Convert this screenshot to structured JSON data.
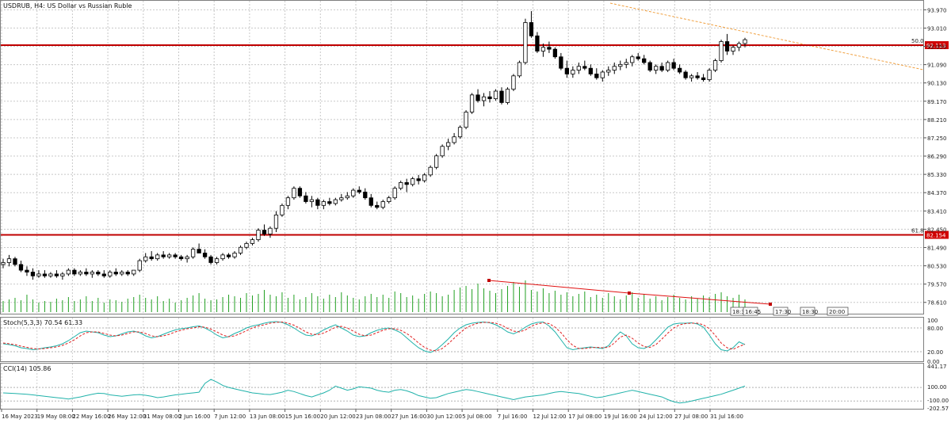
{
  "chart_data": {
    "type": "candlestick",
    "title": "USDRUB, H4:  US Dollar vs Russian Ruble",
    "price_axis": {
      "ticks": [
        "93.970",
        "93.010",
        "92.050",
        "91.090",
        "90.130",
        "89.170",
        "88.210",
        "87.250",
        "86.290",
        "85.330",
        "84.370",
        "83.410",
        "82.450",
        "81.490",
        "80.530",
        "79.570",
        "78.610"
      ],
      "range": [
        78.1,
        94.4
      ]
    },
    "time_axis": {
      "labels": [
        "16 May 2023",
        "19 May 08:00",
        "22 May 16:00",
        "26 May 12:00",
        "31 May 08:00",
        "2 Jun 16:00",
        "7 Jun 12:00",
        "13 Jun 08:00",
        "15 Jun 16:00",
        "20 Jun 12:00",
        "23 Jun 08:00",
        "27 Jun 16:00",
        "30 Jun 12:00",
        "5 Jul 08:00",
        "7 Jul 16:00",
        "12 Jul 12:00",
        "17 Jul 08:00",
        "19 Jul 16:00",
        "24 Jul 12:00",
        "27 Jul 08:00",
        "31 Jul 16:00"
      ]
    },
    "horizontal_levels": [
      {
        "label": "50.0",
        "value": 92.113,
        "tag": "92.113",
        "color": "#c00000"
      },
      {
        "label": "61.8",
        "value": 82.154,
        "tag": "82.154",
        "color": "#c00000"
      }
    ],
    "candles": [
      [
        80.6,
        80.9,
        80.4,
        80.7
      ],
      [
        80.7,
        81.1,
        80.5,
        80.9
      ],
      [
        80.9,
        81.0,
        80.5,
        80.6
      ],
      [
        80.6,
        80.8,
        80.2,
        80.3
      ],
      [
        80.3,
        80.5,
        80.0,
        80.2
      ],
      [
        80.2,
        80.4,
        79.8,
        80.0
      ],
      [
        80.0,
        80.3,
        79.9,
        80.1
      ],
      [
        80.1,
        80.3,
        79.9,
        80.0
      ],
      [
        80.0,
        80.2,
        79.9,
        80.1
      ],
      [
        80.1,
        80.3,
        79.9,
        80.0
      ],
      [
        80.0,
        80.2,
        79.8,
        80.1
      ],
      [
        80.1,
        80.4,
        80.0,
        80.3
      ],
      [
        80.3,
        80.4,
        80.0,
        80.1
      ],
      [
        80.1,
        80.3,
        80.0,
        80.2
      ],
      [
        80.2,
        80.4,
        80.0,
        80.1
      ],
      [
        80.1,
        80.3,
        79.9,
        80.2
      ],
      [
        80.2,
        80.3,
        80.0,
        80.1
      ],
      [
        80.1,
        80.3,
        79.9,
        80.0
      ],
      [
        80.0,
        80.3,
        79.9,
        80.2
      ],
      [
        80.2,
        80.4,
        80.0,
        80.1
      ],
      [
        80.1,
        80.3,
        80.0,
        80.2
      ],
      [
        80.2,
        80.3,
        80.0,
        80.1
      ],
      [
        80.1,
        80.3,
        80.0,
        80.3
      ],
      [
        80.3,
        80.9,
        80.2,
        80.8
      ],
      [
        80.8,
        81.2,
        80.7,
        81.0
      ],
      [
        81.0,
        81.3,
        80.8,
        80.9
      ],
      [
        80.9,
        81.2,
        80.8,
        81.1
      ],
      [
        81.1,
        81.3,
        80.9,
        81.0
      ],
      [
        81.0,
        81.2,
        80.9,
        81.1
      ],
      [
        81.1,
        81.2,
        80.9,
        81.0
      ],
      [
        81.0,
        81.1,
        80.8,
        80.9
      ],
      [
        80.9,
        81.1,
        80.7,
        81.0
      ],
      [
        81.0,
        81.5,
        80.9,
        81.4
      ],
      [
        81.4,
        81.7,
        81.3,
        81.2
      ],
      [
        81.2,
        81.4,
        80.9,
        81.0
      ],
      [
        81.0,
        81.1,
        80.6,
        80.7
      ],
      [
        80.7,
        81.0,
        80.6,
        80.9
      ],
      [
        80.9,
        81.2,
        80.8,
        81.1
      ],
      [
        81.1,
        81.2,
        80.9,
        81.0
      ],
      [
        81.0,
        81.3,
        80.9,
        81.2
      ],
      [
        81.2,
        81.6,
        81.1,
        81.5
      ],
      [
        81.5,
        81.8,
        81.4,
        81.7
      ],
      [
        81.7,
        82.0,
        81.6,
        81.9
      ],
      [
        81.9,
        82.5,
        81.8,
        82.4
      ],
      [
        82.4,
        82.7,
        82.1,
        82.2
      ],
      [
        82.2,
        82.6,
        82.0,
        82.5
      ],
      [
        82.5,
        83.4,
        82.3,
        83.2
      ],
      [
        83.2,
        83.8,
        83.1,
        83.7
      ],
      [
        83.7,
        84.2,
        83.5,
        84.1
      ],
      [
        84.1,
        84.7,
        84.0,
        84.6
      ],
      [
        84.6,
        84.7,
        84.1,
        84.2
      ],
      [
        84.2,
        84.4,
        83.8,
        83.9
      ],
      [
        83.9,
        84.2,
        83.6,
        84.0
      ],
      [
        84.0,
        84.1,
        83.5,
        83.7
      ],
      [
        83.7,
        84.0,
        83.5,
        83.9
      ],
      [
        83.9,
        84.1,
        83.7,
        83.8
      ],
      [
        83.8,
        84.1,
        83.7,
        84.0
      ],
      [
        84.0,
        84.3,
        83.9,
        84.1
      ],
      [
        84.1,
        84.4,
        84.0,
        84.2
      ],
      [
        84.2,
        84.6,
        84.1,
        84.5
      ],
      [
        84.5,
        84.7,
        84.3,
        84.4
      ],
      [
        84.4,
        84.6,
        84.0,
        84.1
      ],
      [
        84.1,
        84.3,
        83.6,
        83.7
      ],
      [
        83.7,
        83.9,
        83.5,
        83.6
      ],
      [
        83.6,
        84.0,
        83.5,
        83.9
      ],
      [
        83.9,
        84.2,
        83.8,
        84.1
      ],
      [
        84.1,
        84.7,
        84.0,
        84.6
      ],
      [
        84.6,
        85.0,
        84.5,
        84.9
      ],
      [
        84.9,
        85.1,
        84.4,
        84.8
      ],
      [
        84.8,
        85.2,
        84.7,
        85.1
      ],
      [
        85.1,
        85.3,
        84.8,
        85.0
      ],
      [
        85.0,
        85.4,
        84.9,
        85.3
      ],
      [
        85.3,
        85.8,
        85.2,
        85.7
      ],
      [
        85.7,
        86.4,
        85.6,
        86.3
      ],
      [
        86.3,
        86.9,
        86.2,
        86.8
      ],
      [
        86.8,
        87.2,
        86.6,
        87.0
      ],
      [
        87.0,
        87.5,
        86.9,
        87.3
      ],
      [
        87.3,
        87.9,
        87.2,
        87.8
      ],
      [
        87.8,
        88.7,
        87.7,
        88.6
      ],
      [
        88.6,
        89.6,
        88.5,
        89.5
      ],
      [
        89.5,
        89.8,
        89.1,
        89.2
      ],
      [
        89.2,
        89.6,
        88.9,
        89.4
      ],
      [
        89.4,
        89.7,
        89.1,
        89.3
      ],
      [
        89.3,
        89.8,
        89.2,
        89.7
      ],
      [
        89.7,
        89.9,
        89.0,
        89.1
      ],
      [
        89.1,
        89.9,
        89.0,
        89.8
      ],
      [
        89.8,
        90.6,
        89.7,
        90.5
      ],
      [
        90.5,
        91.3,
        90.4,
        91.2
      ],
      [
        91.2,
        93.5,
        91.1,
        93.3
      ],
      [
        93.3,
        93.9,
        92.5,
        92.6
      ],
      [
        92.6,
        92.8,
        91.7,
        91.8
      ],
      [
        91.8,
        92.2,
        91.5,
        92.0
      ],
      [
        92.0,
        92.3,
        91.7,
        91.9
      ],
      [
        91.9,
        92.0,
        91.4,
        91.5
      ],
      [
        91.5,
        91.7,
        90.8,
        90.9
      ],
      [
        90.9,
        91.3,
        90.4,
        90.6
      ],
      [
        90.6,
        91.0,
        90.4,
        90.8
      ],
      [
        90.8,
        91.2,
        90.6,
        91.0
      ],
      [
        91.0,
        91.3,
        90.8,
        90.9
      ],
      [
        90.9,
        91.1,
        90.5,
        90.6
      ],
      [
        90.6,
        90.9,
        90.3,
        90.4
      ],
      [
        90.4,
        90.8,
        90.2,
        90.7
      ],
      [
        90.7,
        91.0,
        90.5,
        90.8
      ],
      [
        90.8,
        91.2,
        90.6,
        91.0
      ],
      [
        91.0,
        91.3,
        90.8,
        91.1
      ],
      [
        91.1,
        91.4,
        90.9,
        91.2
      ],
      [
        91.2,
        91.6,
        91.0,
        91.5
      ],
      [
        91.5,
        91.7,
        91.3,
        91.4
      ],
      [
        91.4,
        91.6,
        91.1,
        91.2
      ],
      [
        91.2,
        91.3,
        90.7,
        90.8
      ],
      [
        90.8,
        91.1,
        90.6,
        91.0
      ],
      [
        91.0,
        91.2,
        90.7,
        90.8
      ],
      [
        90.8,
        91.3,
        90.7,
        91.2
      ],
      [
        91.2,
        91.4,
        90.8,
        90.9
      ],
      [
        90.9,
        91.1,
        90.6,
        90.7
      ],
      [
        90.7,
        90.8,
        90.3,
        90.4
      ],
      [
        90.4,
        90.6,
        90.2,
        90.5
      ],
      [
        90.5,
        90.7,
        90.3,
        90.4
      ],
      [
        90.4,
        90.6,
        90.2,
        90.3
      ],
      [
        90.3,
        90.9,
        90.2,
        90.8
      ],
      [
        90.8,
        91.4,
        90.7,
        91.3
      ],
      [
        91.3,
        92.4,
        91.2,
        92.3
      ],
      [
        92.3,
        92.7,
        91.6,
        91.8
      ],
      [
        91.8,
        92.1,
        91.6,
        92.0
      ],
      [
        92.0,
        92.3,
        91.8,
        92.2
      ],
      [
        92.2,
        92.5,
        92.0,
        92.4
      ]
    ],
    "volume": [
      14,
      16,
      18,
      15,
      22,
      16,
      12,
      14,
      13,
      17,
      15,
      19,
      14,
      16,
      20,
      14,
      18,
      12,
      16,
      15,
      13,
      17,
      19,
      22,
      18,
      16,
      20,
      14,
      17,
      12,
      15,
      18,
      21,
      24,
      17,
      15,
      16,
      19,
      22,
      20,
      18,
      24,
      21,
      23,
      28,
      22,
      20,
      25,
      18,
      22,
      16,
      19,
      24,
      20,
      17,
      22,
      19,
      25,
      21,
      18,
      16,
      20,
      23,
      19,
      22,
      18,
      26,
      24,
      19,
      21,
      17,
      23,
      26,
      24,
      20,
      22,
      28,
      31,
      33,
      29,
      36,
      30,
      27,
      24,
      29,
      33,
      38,
      32,
      40,
      28,
      26,
      30,
      24,
      27,
      22,
      25,
      20,
      23,
      26,
      19,
      22,
      18,
      24,
      20,
      16,
      21,
      25,
      18,
      23,
      17,
      20,
      15,
      19,
      22,
      18,
      16,
      20,
      17,
      21,
      19,
      23,
      25,
      20,
      18,
      22,
      16
    ],
    "annotations": [
      "18:30",
      "16:45",
      "17:30",
      "18:30",
      "20:00"
    ],
    "stochastic": {
      "label": "Stoch(5,3,3) 70.54 61.33",
      "ticks": [
        "100",
        "80.00",
        "20.00",
        "0.00"
      ],
      "main": [
        40,
        38,
        35,
        30,
        28,
        25,
        27,
        30,
        32,
        35,
        40,
        48,
        58,
        68,
        72,
        70,
        68,
        62,
        58,
        60,
        65,
        70,
        72,
        68,
        60,
        55,
        58,
        64,
        70,
        75,
        78,
        80,
        83,
        85,
        80,
        72,
        62,
        55,
        58,
        66,
        72,
        80,
        85,
        88,
        92,
        95,
        96,
        94,
        88,
        80,
        70,
        62,
        60,
        66,
        75,
        82,
        88,
        80,
        72,
        62,
        58,
        60,
        68,
        74,
        78,
        80,
        75,
        68,
        55,
        42,
        30,
        22,
        18,
        25,
        38,
        52,
        68,
        80,
        88,
        92,
        94,
        95,
        93,
        88,
        80,
        70,
        65,
        72,
        82,
        90,
        94,
        95,
        85,
        70,
        50,
        30,
        25,
        28,
        30,
        32,
        30,
        28,
        35,
        55,
        70,
        60,
        40,
        30,
        28,
        35,
        50,
        66,
        82,
        90,
        92,
        92,
        93,
        90,
        82,
        62,
        40,
        25,
        22,
        30,
        45,
        38,
        26,
        22,
        25,
        35,
        55,
        70,
        86,
        92,
        80,
        68,
        62,
        66,
        70
      ],
      "signal": [
        42,
        40,
        38,
        34,
        31,
        28,
        27,
        28,
        30,
        32,
        36,
        42,
        50,
        60,
        68,
        70,
        70,
        66,
        62,
        60,
        62,
        66,
        70,
        70,
        66,
        60,
        58,
        60,
        64,
        70,
        74,
        78,
        80,
        83,
        82,
        77,
        70,
        62,
        58,
        60,
        66,
        73,
        80,
        85,
        88,
        92,
        94,
        95,
        92,
        87,
        79,
        70,
        64,
        63,
        67,
        74,
        82,
        84,
        80,
        72,
        64,
        60,
        62,
        68,
        74,
        78,
        78,
        74,
        66,
        55,
        42,
        31,
        24,
        22,
        28,
        40,
        54,
        68,
        80,
        87,
        92,
        94,
        94,
        92,
        87,
        79,
        72,
        70,
        75,
        84,
        90,
        93,
        91,
        82,
        68,
        50,
        36,
        28,
        28,
        30,
        31,
        30,
        31,
        42,
        57,
        62,
        54,
        42,
        33,
        31,
        38,
        52,
        67,
        80,
        88,
        91,
        92,
        92,
        88,
        78,
        61,
        42,
        30,
        26,
        33,
        39,
        36,
        28,
        24,
        27,
        38,
        54,
        70,
        84,
        88,
        80,
        70,
        64,
        62
      ]
    },
    "cci": {
      "label": "CCI(14) 105.86",
      "ticks": [
        "441.17",
        "100.00",
        "-100.00",
        "-202.57"
      ],
      "values": [
        20,
        15,
        10,
        5,
        0,
        -10,
        -20,
        -30,
        -40,
        -50,
        -60,
        -70,
        -55,
        -40,
        -20,
        0,
        15,
        10,
        -10,
        -20,
        -30,
        -20,
        -10,
        -5,
        -15,
        -30,
        -50,
        -40,
        -25,
        -10,
        0,
        10,
        20,
        30,
        160,
        220,
        180,
        130,
        100,
        80,
        60,
        40,
        20,
        10,
        0,
        -5,
        10,
        30,
        60,
        40,
        10,
        -20,
        -40,
        -10,
        20,
        60,
        120,
        90,
        60,
        80,
        110,
        100,
        90,
        60,
        40,
        30,
        60,
        70,
        50,
        20,
        -20,
        -40,
        -60,
        -50,
        -20,
        10,
        30,
        50,
        70,
        60,
        40,
        20,
        0,
        -20,
        -40,
        -60,
        -80,
        -60,
        -40,
        -30,
        -20,
        -10,
        10,
        30,
        40,
        30,
        20,
        10,
        -10,
        -30,
        -50,
        -40,
        -20,
        0,
        20,
        40,
        60,
        40,
        20,
        0,
        -20,
        -40,
        -80,
        -110,
        -130,
        -120,
        -100,
        -80,
        -60,
        -40,
        -20,
        0,
        30,
        60,
        90,
        120,
        150,
        110,
        80,
        60,
        60,
        60,
        60,
        60
      ]
    }
  }
}
